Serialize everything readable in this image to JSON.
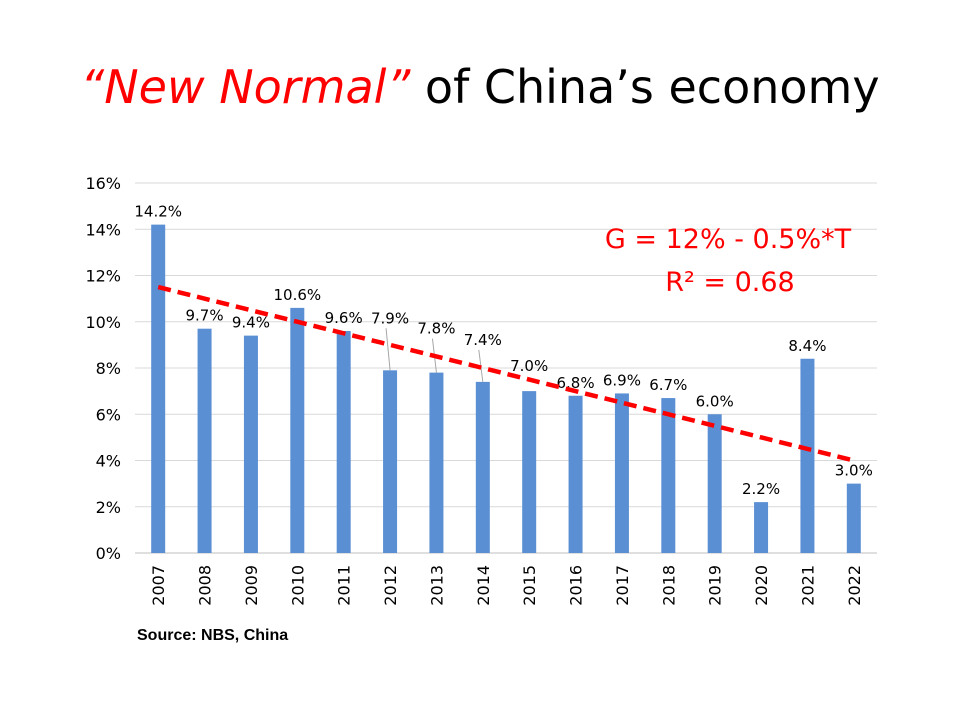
{
  "title": {
    "highlight": "“New Normal”",
    "rest": " of China’s economy"
  },
  "source": "Source: NBS, China",
  "chart_data": {
    "type": "bar",
    "categories": [
      "2007",
      "2008",
      "2009",
      "2010",
      "2011",
      "2012",
      "2013",
      "2014",
      "2015",
      "2016",
      "2017",
      "2018",
      "2019",
      "2020",
      "2021",
      "2022"
    ],
    "values": [
      14.2,
      9.7,
      9.4,
      10.6,
      9.6,
      7.9,
      7.8,
      7.4,
      7.0,
      6.8,
      6.9,
      6.7,
      6.0,
      2.2,
      8.4,
      3.0
    ],
    "data_labels": [
      "14.2%",
      "9.7%",
      "9.4%",
      "10.6%",
      "9.6%",
      "7.9%",
      "7.8%",
      "7.4%",
      "7.0%",
      "6.8%",
      "6.9%",
      "6.7%",
      "6.0%",
      "2.2%",
      "8.4%",
      "3.0%"
    ],
    "ylim": [
      0,
      16
    ],
    "yticks": [
      "0%",
      "2%",
      "4%",
      "6%",
      "8%",
      "10%",
      "12%",
      "14%",
      "16%"
    ],
    "grid": true,
    "bar_color": "#5B8FD4",
    "trendline": {
      "type": "linear",
      "start": 11.5,
      "end": 4.0,
      "color": "#ff0000",
      "style": "dashed",
      "equation": "G = 12% - 0.5%*T",
      "r2": "R² = 0.68"
    }
  }
}
